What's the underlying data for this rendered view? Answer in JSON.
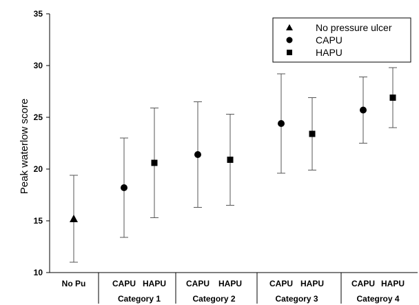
{
  "chart_data": {
    "type": "scatter",
    "title": "",
    "xlabel": "",
    "ylabel": "Peak waterlow score",
    "ylim": [
      10,
      35
    ],
    "yticks": [
      10,
      15,
      20,
      25,
      30,
      35
    ],
    "grid": false,
    "legend_position": "top-right",
    "legend": [
      {
        "name": "No pressure ulcer",
        "marker": "triangle"
      },
      {
        "name": "CAPU",
        "marker": "circle"
      },
      {
        "name": "HAPU",
        "marker": "square"
      }
    ],
    "categories": [
      "No Pu",
      "CAPU",
      "HAPU",
      "CAPU",
      "HAPU",
      "CAPU",
      "HAPU",
      "CAPU",
      "HAPU"
    ],
    "groups": [
      {
        "label": "",
        "start": 0,
        "end": 0
      },
      {
        "label": "Category 1",
        "start": 1,
        "end": 2
      },
      {
        "label": "Category 2",
        "start": 3,
        "end": 4
      },
      {
        "label": "Category 3",
        "start": 5,
        "end": 6
      },
      {
        "label": "Categroy 4",
        "start": 7,
        "end": 8
      }
    ],
    "points": [
      {
        "category": "No Pu",
        "marker": "triangle",
        "value": 15.2,
        "lower": 11.0,
        "upper": 19.4
      },
      {
        "category": "CAPU",
        "group": "Category 1",
        "marker": "circle",
        "value": 18.2,
        "lower": 13.4,
        "upper": 23.0
      },
      {
        "category": "HAPU",
        "group": "Category 1",
        "marker": "square",
        "value": 20.6,
        "lower": 15.3,
        "upper": 25.9
      },
      {
        "category": "CAPU",
        "group": "Category 2",
        "marker": "circle",
        "value": 21.4,
        "lower": 16.3,
        "upper": 26.5
      },
      {
        "category": "HAPU",
        "group": "Category 2",
        "marker": "square",
        "value": 20.9,
        "lower": 16.5,
        "upper": 25.3
      },
      {
        "category": "CAPU",
        "group": "Category 3",
        "marker": "circle",
        "value": 24.4,
        "lower": 19.6,
        "upper": 29.2
      },
      {
        "category": "HAPU",
        "group": "Category 3",
        "marker": "square",
        "value": 23.4,
        "lower": 19.9,
        "upper": 26.9
      },
      {
        "category": "CAPU",
        "group": "Categroy 4",
        "marker": "circle",
        "value": 25.7,
        "lower": 22.5,
        "upper": 28.9
      },
      {
        "category": "HAPU",
        "group": "Categroy 4",
        "marker": "square",
        "value": 26.9,
        "lower": 24.0,
        "upper": 29.8
      }
    ],
    "colors": {
      "marker": "#000000",
      "errorbar": "#555555",
      "axis": "#000000"
    }
  }
}
